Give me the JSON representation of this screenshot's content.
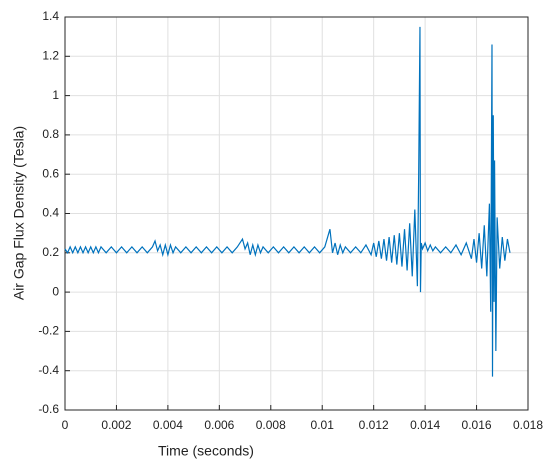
{
  "chart_data": {
    "type": "line",
    "xlabel": "Time (seconds)",
    "ylabel": "Air Gap Flux Density (Tesla)",
    "xlim": [
      0,
      0.018
    ],
    "xticks": [
      0,
      0.002,
      0.004,
      0.006,
      0.008,
      0.01,
      0.012,
      0.014,
      0.016,
      0.018
    ],
    "ylim": [
      -0.6,
      1.4
    ],
    "yticks": [
      -0.6,
      -0.4,
      -0.2,
      0,
      0.2,
      0.4,
      0.6,
      0.8,
      1,
      1.2,
      1.4
    ],
    "grid": true,
    "color": "#0072bd",
    "x": [
      0,
      0.0001,
      0.0002,
      0.0003,
      0.0004,
      0.0005,
      0.0006,
      0.0007,
      0.0008,
      0.0009,
      0.001,
      0.0011,
      0.0012,
      0.0013,
      0.0014,
      0.0016,
      0.0018,
      0.002,
      0.0022,
      0.0024,
      0.0026,
      0.0028,
      0.003,
      0.0032,
      0.0034,
      0.0035,
      0.0036,
      0.0037,
      0.0038,
      0.0039,
      0.004,
      0.0041,
      0.0042,
      0.0043,
      0.0045,
      0.0047,
      0.0049,
      0.0051,
      0.0053,
      0.0055,
      0.0057,
      0.0059,
      0.0061,
      0.0063,
      0.0065,
      0.0067,
      0.0069,
      0.007,
      0.0071,
      0.0072,
      0.0073,
      0.0074,
      0.0075,
      0.0076,
      0.0077,
      0.0079,
      0.0081,
      0.0083,
      0.0085,
      0.0087,
      0.0089,
      0.0091,
      0.0093,
      0.0095,
      0.0097,
      0.0099,
      0.0101,
      0.0103,
      0.0104,
      0.0105,
      0.0106,
      0.0107,
      0.0108,
      0.0109,
      0.0111,
      0.0113,
      0.0115,
      0.0117,
      0.0119,
      0.012,
      0.0121,
      0.0122,
      0.0123,
      0.0124,
      0.0125,
      0.0126,
      0.0127,
      0.0128,
      0.0129,
      0.013,
      0.0131,
      0.0132,
      0.0133,
      0.0134,
      0.0135,
      0.0136,
      0.0137,
      0.01375,
      0.0138,
      0.01382,
      0.01385,
      0.0139,
      0.014,
      0.0141,
      0.0142,
      0.0143,
      0.0144,
      0.0146,
      0.0148,
      0.015,
      0.0152,
      0.0154,
      0.0156,
      0.0158,
      0.0159,
      0.016,
      0.0161,
      0.0162,
      0.0163,
      0.0164,
      0.0165,
      0.01655,
      0.0166,
      0.01662,
      0.01665,
      0.01668,
      0.0167,
      0.01675,
      0.0168,
      0.0169,
      0.017,
      0.0171,
      0.0172,
      0.0173
    ],
    "values": [
      0.22,
      0.2,
      0.23,
      0.2,
      0.23,
      0.2,
      0.23,
      0.2,
      0.23,
      0.2,
      0.23,
      0.2,
      0.23,
      0.2,
      0.23,
      0.2,
      0.23,
      0.2,
      0.23,
      0.2,
      0.23,
      0.2,
      0.23,
      0.2,
      0.23,
      0.26,
      0.21,
      0.24,
      0.19,
      0.24,
      0.19,
      0.24,
      0.2,
      0.23,
      0.2,
      0.23,
      0.2,
      0.23,
      0.2,
      0.23,
      0.2,
      0.23,
      0.2,
      0.23,
      0.2,
      0.23,
      0.27,
      0.22,
      0.25,
      0.19,
      0.24,
      0.19,
      0.24,
      0.2,
      0.23,
      0.2,
      0.23,
      0.2,
      0.23,
      0.2,
      0.23,
      0.2,
      0.23,
      0.2,
      0.23,
      0.2,
      0.23,
      0.32,
      0.2,
      0.25,
      0.19,
      0.24,
      0.2,
      0.23,
      0.2,
      0.23,
      0.2,
      0.24,
      0.19,
      0.25,
      0.18,
      0.26,
      0.17,
      0.27,
      0.16,
      0.28,
      0.15,
      0.29,
      0.14,
      0.3,
      0.13,
      0.32,
      0.11,
      0.35,
      0.08,
      0.42,
      0.03,
      0.6,
      1.35,
      0,
      0.25,
      0.22,
      0.25,
      0.21,
      0.24,
      0.21,
      0.23,
      0.2,
      0.23,
      0.2,
      0.24,
      0.19,
      0.25,
      0.17,
      0.27,
      0.15,
      0.3,
      0.12,
      0.34,
      0.08,
      0.45,
      -0.1,
      1.26,
      -0.43,
      0.9,
      -0.05,
      0.67,
      -0.3,
      0.38,
      0.12,
      0.28,
      0.16,
      0.27,
      0.2
    ]
  }
}
